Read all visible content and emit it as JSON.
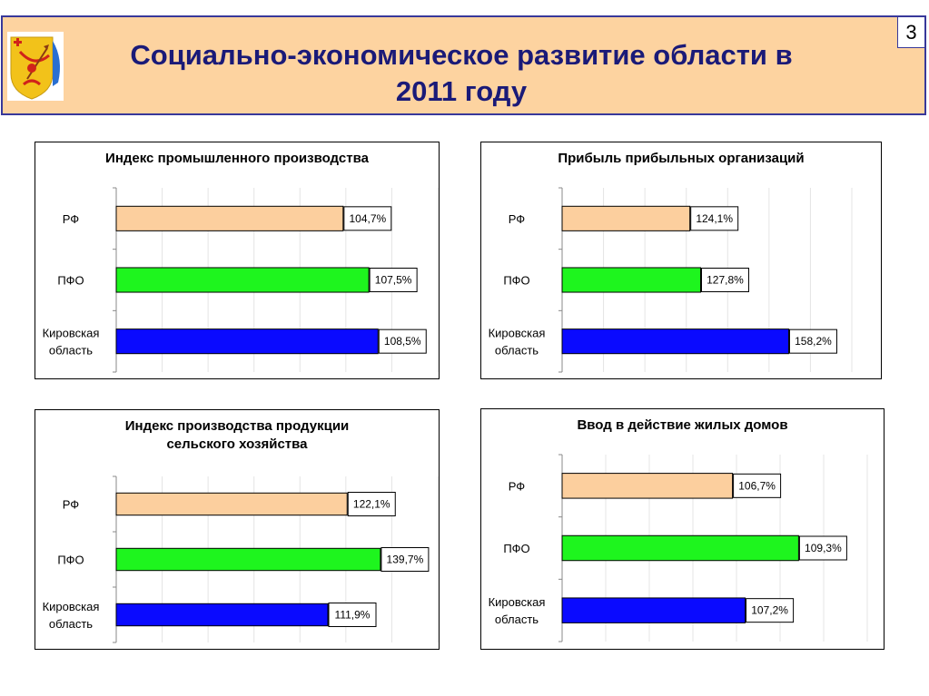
{
  "header": {
    "title": "Социально-экономическое развитие области в\n2011 году",
    "page_number": "3",
    "emblem_icon": "kirov-region-coat-of-arms-icon"
  },
  "colors": {
    "header_bg": "#fdd3a0",
    "title_text": "#1a1a78",
    "rf": "#fccf9e",
    "pfo": "#1ef51e",
    "kirov": "#0a0aff"
  },
  "chart_data": [
    {
      "type": "bar",
      "orientation": "horizontal",
      "title": "Индекс промышленного производства",
      "categories": [
        "РФ",
        "ПФО",
        "Кировская\nобласть"
      ],
      "values": [
        104.7,
        107.5,
        108.5
      ],
      "data_labels": [
        "104,7%",
        "107,5%",
        "108,5%"
      ],
      "unit": "%",
      "xlim": [
        80,
        115
      ],
      "grid": true
    },
    {
      "type": "bar",
      "orientation": "horizontal",
      "title": "Прибыль прибыльных организаций",
      "categories": [
        "РФ",
        "ПФО",
        "Кировская\nобласть"
      ],
      "values": [
        124.1,
        127.8,
        158.2
      ],
      "data_labels": [
        "124,1%",
        "127,8%",
        "158,2%"
      ],
      "unit": "%",
      "xlim": [
        80,
        180
      ],
      "grid": true
    },
    {
      "type": "bar",
      "orientation": "horizontal",
      "title": "Индекс производства продукции\nсельского хозяйства",
      "categories": [
        "РФ",
        "ПФО",
        "Кировская\nобласть"
      ],
      "values": [
        122.1,
        139.7,
        111.9
      ],
      "data_labels": [
        "122,1%",
        "139,7%",
        "111,9%"
      ],
      "unit": "%",
      "xlim": [
        0,
        170
      ],
      "grid": true
    },
    {
      "type": "bar",
      "orientation": "horizontal",
      "title": "Ввод в действие жилых домов",
      "categories": [
        "РФ",
        "ПФО",
        "Кировская\nобласть"
      ],
      "values": [
        106.7,
        109.3,
        107.2
      ],
      "data_labels": [
        "106,7%",
        "109,3%",
        "107,2%"
      ],
      "unit": "%",
      "xlim": [
        100,
        112
      ],
      "grid": true
    }
  ]
}
